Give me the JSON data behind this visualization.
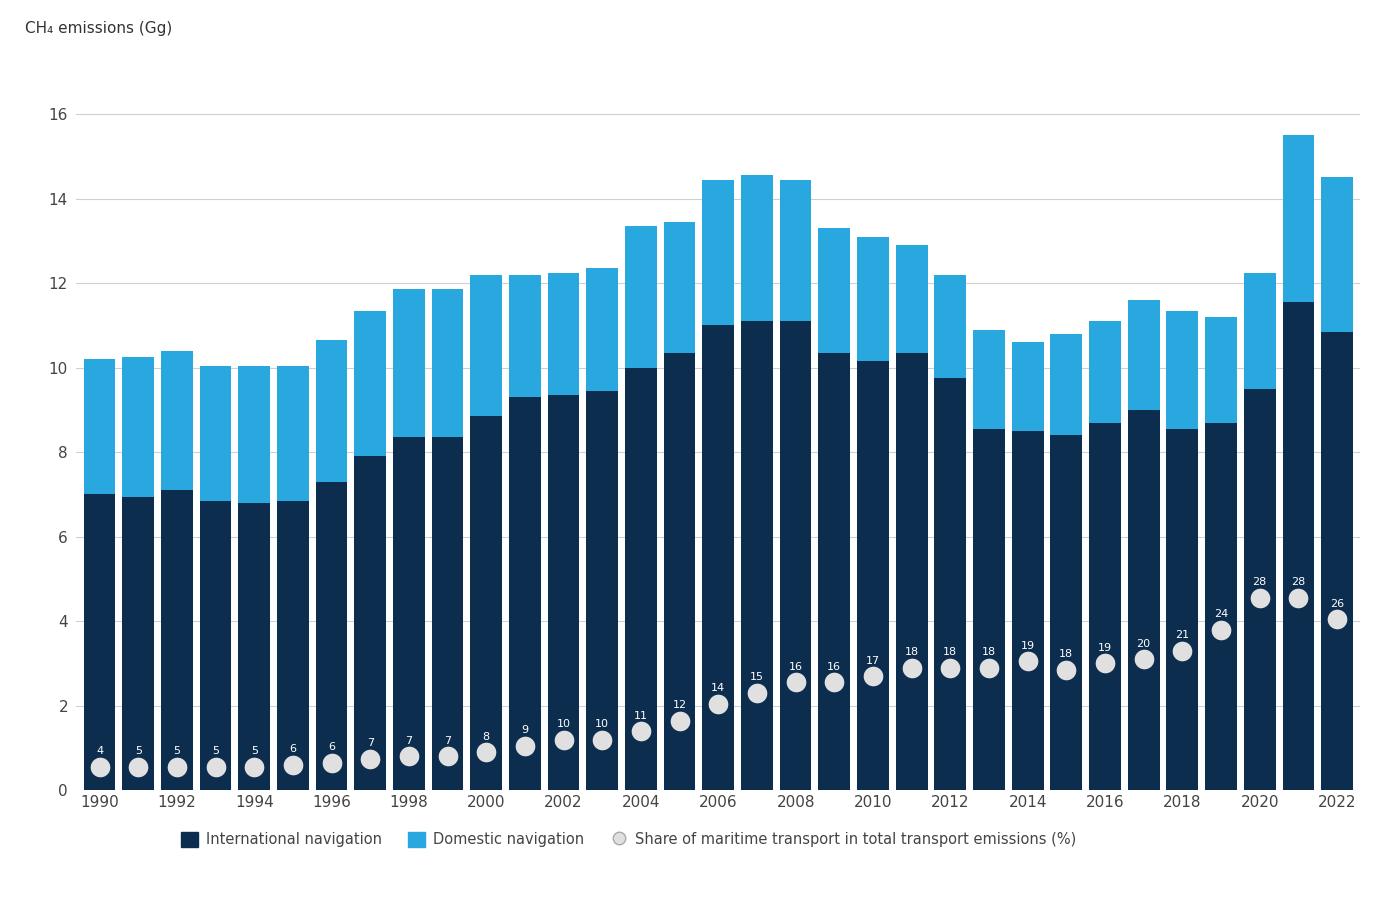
{
  "years": [
    1990,
    1991,
    1992,
    1993,
    1994,
    1995,
    1996,
    1997,
    1998,
    1999,
    2000,
    2001,
    2002,
    2003,
    2004,
    2005,
    2006,
    2007,
    2008,
    2009,
    2010,
    2011,
    2012,
    2013,
    2014,
    2015,
    2016,
    2017,
    2018,
    2019,
    2020,
    2021,
    2022
  ],
  "international_navigation": [
    7.0,
    6.95,
    7.1,
    6.85,
    6.8,
    6.85,
    7.3,
    7.9,
    8.35,
    8.35,
    8.85,
    9.3,
    9.35,
    9.45,
    10.0,
    10.35,
    11.0,
    11.1,
    11.1,
    10.35,
    10.15,
    10.35,
    9.75,
    8.55,
    8.5,
    8.4,
    8.7,
    9.0,
    8.55,
    8.7,
    9.5,
    11.55,
    10.85
  ],
  "domestic_navigation": [
    3.2,
    3.3,
    3.3,
    3.2,
    3.25,
    3.2,
    3.35,
    3.45,
    3.5,
    3.5,
    3.35,
    2.9,
    2.9,
    2.9,
    3.35,
    3.1,
    3.45,
    3.45,
    3.35,
    2.95,
    2.95,
    2.55,
    2.45,
    2.35,
    2.1,
    2.4,
    2.4,
    2.6,
    2.8,
    2.5,
    2.75,
    3.95,
    3.65
  ],
  "share_labels": [
    4,
    5,
    5,
    5,
    5,
    6,
    6,
    7,
    7,
    7,
    8,
    9,
    10,
    10,
    11,
    12,
    14,
    15,
    16,
    16,
    17,
    18,
    18,
    18,
    19,
    18,
    19,
    20,
    21,
    24,
    28,
    28,
    26
  ],
  "share_dot_y": [
    0.55,
    0.55,
    0.55,
    0.55,
    0.55,
    0.6,
    0.65,
    0.75,
    0.8,
    0.8,
    0.9,
    1.05,
    1.2,
    1.2,
    1.4,
    1.65,
    2.05,
    2.3,
    2.55,
    2.55,
    2.7,
    2.9,
    2.9,
    2.9,
    3.05,
    2.85,
    3.0,
    3.1,
    3.3,
    3.8,
    4.55,
    4.55,
    4.05
  ],
  "int_nav_color": "#0d2d4e",
  "dom_nav_color": "#29a8e0",
  "share_dot_facecolor": "#e0e0e0",
  "share_text_color": "#ffffff",
  "background_color": "#ffffff",
  "grid_color": "#d0d0d0",
  "ylabel": "CH₄ emissions (Gg)",
  "ylim": [
    0,
    17
  ],
  "yticks": [
    0,
    2,
    4,
    6,
    8,
    10,
    12,
    14,
    16
  ],
  "legend_int": "International navigation",
  "legend_dom": "Domestic navigation",
  "legend_share": "Share of maritime transport in total transport emissions (%)"
}
